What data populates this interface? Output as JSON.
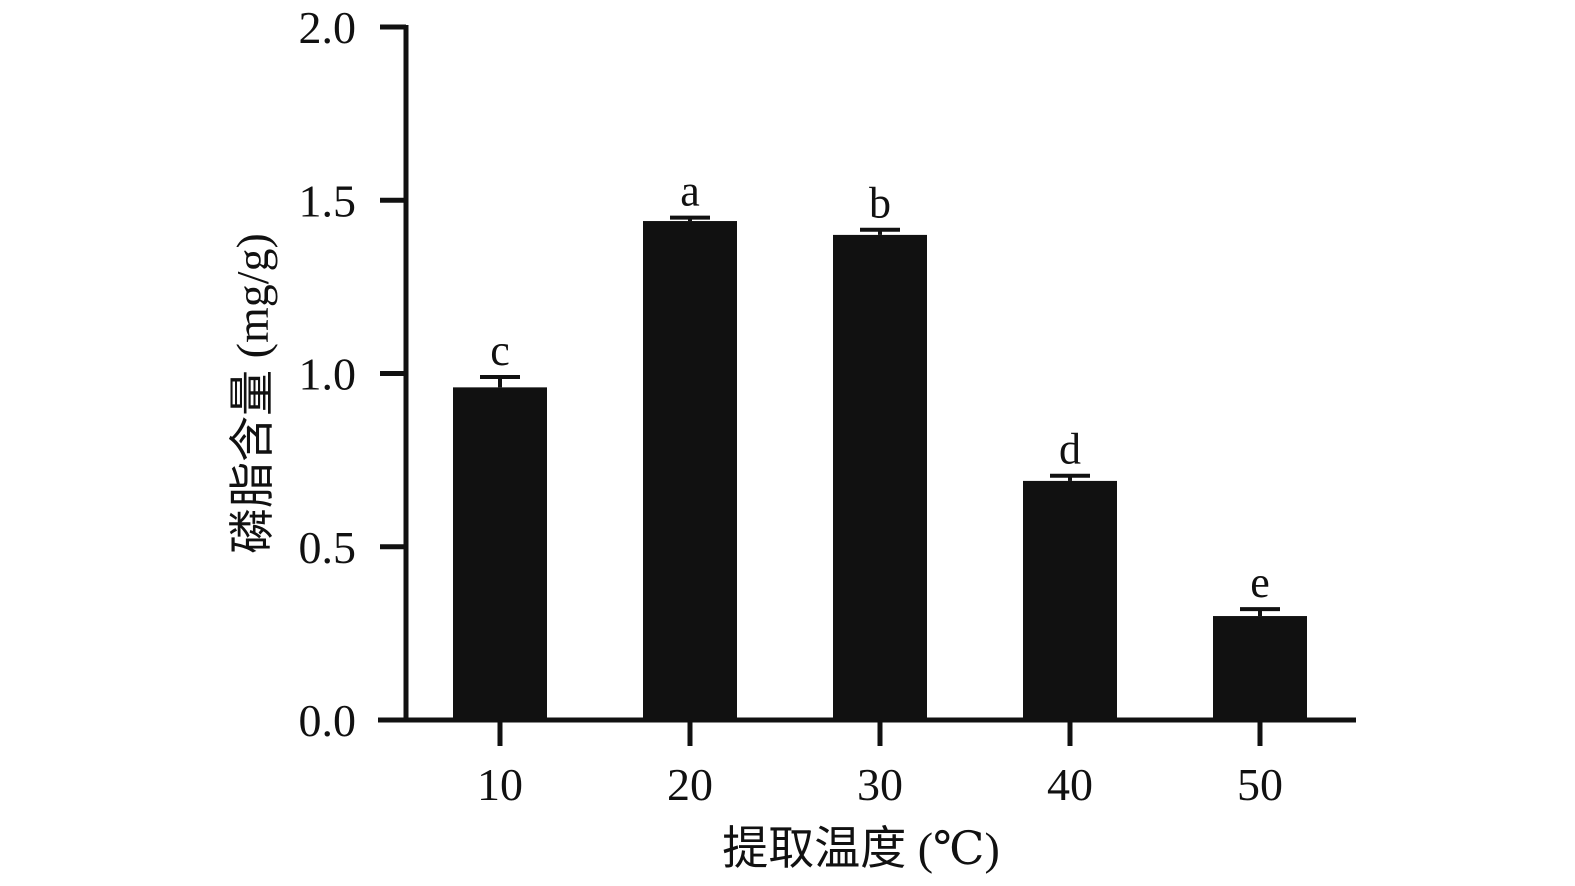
{
  "chart_data": {
    "type": "bar",
    "categories": [
      "10",
      "20",
      "30",
      "40",
      "50"
    ],
    "values": [
      0.96,
      1.44,
      1.4,
      0.69,
      0.3
    ],
    "errors": [
      0.03,
      0.01,
      0.015,
      0.015,
      0.02
    ],
    "significance_labels": [
      "c",
      "a",
      "b",
      "d",
      "e"
    ],
    "xlabel": "提取温度 (℃)",
    "ylabel": "磷脂含量 (mg/g)",
    "ylim": [
      0,
      2.0
    ],
    "yticks": [
      "0.0",
      "0.5",
      "1.0",
      "1.5",
      "2.0"
    ],
    "ytick_values": [
      0,
      0.5,
      1.0,
      1.5,
      2.0
    ],
    "grid": false,
    "bar_color": "#111111",
    "axis_color": "#111111"
  }
}
